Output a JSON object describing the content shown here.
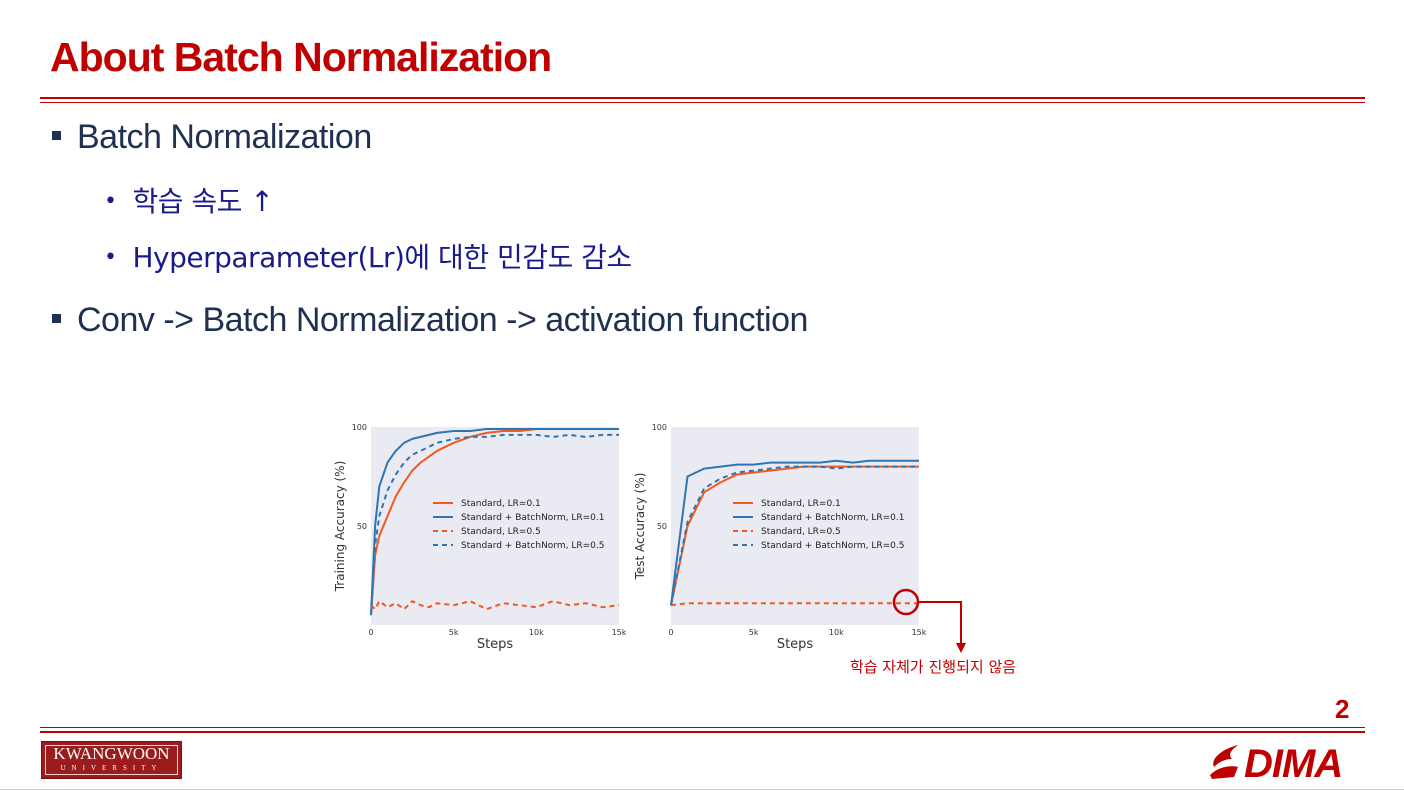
{
  "slide": {
    "title": "About Batch Normalization",
    "page_number": "2",
    "bullets": [
      {
        "text": "Batch Normalization"
      },
      {
        "text": "Conv -> Batch Normalization -> activation function"
      }
    ],
    "sub_bullets": [
      {
        "text": "학습 속도 ↑"
      },
      {
        "text": "Hyperparameter(Lr)에 대한 민감도 감소"
      }
    ],
    "annotation": "학습 자체가 진행되지 않음",
    "logos": {
      "kwangwoon_top": "KWANGWOON",
      "kwangwoon_bottom": "UNIVERSITY",
      "dima": "DIMA"
    },
    "colors": {
      "accent": "#c00000",
      "text": "#1f3050",
      "sub_text": "#1a1a8a"
    }
  },
  "chart_data": [
    {
      "type": "line",
      "xlabel": "Steps",
      "ylabel": "Training Accuracy (%)",
      "xlim": [
        0,
        15000
      ],
      "ylim": [
        0,
        100
      ],
      "xticks": [
        "0",
        "5k",
        "10k",
        "15k"
      ],
      "yticks": [
        "50",
        "100"
      ],
      "legend": "center-right",
      "x": [
        0,
        250,
        500,
        1000,
        1500,
        2000,
        2500,
        3000,
        3500,
        4000,
        5000,
        6000,
        7000,
        8000,
        9000,
        10000,
        11000,
        12000,
        13000,
        14000,
        15000
      ],
      "series": [
        {
          "name": "Standard, LR=0.1",
          "color": "#f05a1e",
          "dash": "solid",
          "values": [
            5,
            35,
            45,
            55,
            65,
            72,
            78,
            82,
            85,
            88,
            92,
            95,
            97,
            98,
            98,
            99,
            99,
            99,
            99,
            99,
            99
          ]
        },
        {
          "name": "Standard + BatchNorm, LR=0.1",
          "color": "#2e75b6",
          "dash": "solid",
          "values": [
            5,
            50,
            70,
            82,
            88,
            92,
            94,
            95,
            96,
            97,
            98,
            98,
            99,
            99,
            99,
            99,
            99,
            99,
            99,
            99,
            99
          ]
        },
        {
          "name": "Standard, LR=0.5",
          "color": "#f05a1e",
          "dash": "dashed",
          "values": [
            10,
            8,
            12,
            9,
            11,
            8,
            12,
            10,
            9,
            11,
            10,
            12,
            8,
            11,
            10,
            9,
            12,
            10,
            11,
            9,
            10
          ]
        },
        {
          "name": "Standard + BatchNorm, LR=0.5",
          "color": "#2e75b6",
          "dash": "dashed",
          "values": [
            5,
            40,
            55,
            68,
            76,
            82,
            86,
            88,
            90,
            92,
            94,
            95,
            95,
            96,
            96,
            96,
            95,
            96,
            95,
            96,
            96
          ]
        }
      ]
    },
    {
      "type": "line",
      "xlabel": "Steps",
      "ylabel": "Test Accuracy (%)",
      "xlim": [
        0,
        15000
      ],
      "ylim": [
        0,
        100
      ],
      "xticks": [
        "0",
        "5k",
        "10k",
        "15k"
      ],
      "yticks": [
        "50",
        "100"
      ],
      "legend": "center-right",
      "x": [
        0,
        1000,
        2000,
        3000,
        4000,
        5000,
        6000,
        7000,
        8000,
        9000,
        10000,
        11000,
        12000,
        13000,
        14000,
        15000
      ],
      "series": [
        {
          "name": "Standard, LR=0.1",
          "color": "#f05a1e",
          "dash": "solid",
          "values": [
            10,
            50,
            67,
            72,
            76,
            77,
            78,
            79,
            80,
            80,
            80,
            80,
            80,
            80,
            80,
            80
          ]
        },
        {
          "name": "Standard + BatchNorm, LR=0.1",
          "color": "#2e75b6",
          "dash": "solid",
          "values": [
            10,
            75,
            79,
            80,
            81,
            81,
            82,
            82,
            82,
            82,
            83,
            82,
            83,
            83,
            83,
            83
          ]
        },
        {
          "name": "Standard, LR=0.5",
          "color": "#f05a1e",
          "dash": "dashed",
          "values": [
            10,
            11,
            11,
            11,
            11,
            11,
            11,
            11,
            11,
            11,
            11,
            11,
            11,
            11,
            11,
            11
          ]
        },
        {
          "name": "Standard + BatchNorm, LR=0.5",
          "color": "#2e75b6",
          "dash": "dashed",
          "values": [
            10,
            52,
            69,
            74,
            77,
            78,
            79,
            80,
            80,
            80,
            79,
            80,
            80,
            80,
            80,
            80
          ]
        }
      ]
    }
  ]
}
